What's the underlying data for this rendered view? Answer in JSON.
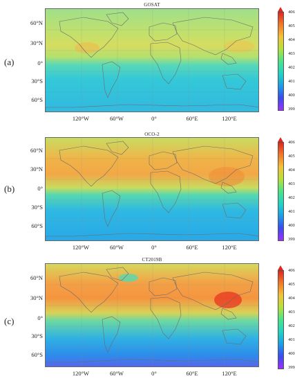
{
  "panels": [
    {
      "label": "(a)",
      "title": "GOSAT",
      "variant": "a"
    },
    {
      "label": "(b)",
      "title": "OCO-2",
      "variant": "b"
    },
    {
      "label": "(c)",
      "title": "CT2019B",
      "variant": "c"
    }
  ],
  "lat_labels": [
    "60°N",
    "30°N",
    "0°",
    "30°S",
    "60°S"
  ],
  "lon_labels": [
    "120°W",
    "60°W",
    "0°",
    "60°E",
    "120°E"
  ],
  "colorbar": {
    "ticks": [
      "406",
      "405",
      "404",
      "403",
      "402",
      "401",
      "400",
      "399"
    ],
    "min": 399,
    "max": 406,
    "extend_max": true,
    "colors": [
      "#9b30ff",
      "#3a4cf0",
      "#1c9ee6",
      "#22d3c5",
      "#4be38a",
      "#b6e03b",
      "#f2c23a",
      "#f27a28",
      "#e0271f"
    ]
  }
}
